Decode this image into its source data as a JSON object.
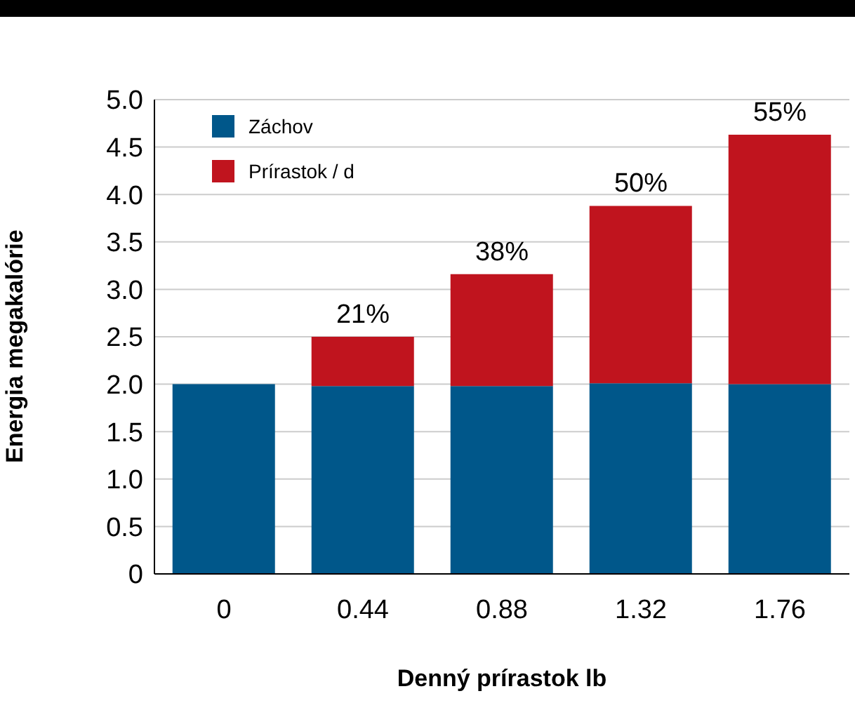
{
  "chart_data": {
    "type": "bar",
    "stacked": true,
    "xlabel": "Denný prírastok lb",
    "ylabel": "Energia megakalórie",
    "categories": [
      "0",
      "0.44",
      "0.88",
      "1.32",
      "1.76"
    ],
    "series": [
      {
        "name": "Záchov",
        "color": "#00578a",
        "values": [
          2.0,
          1.98,
          1.98,
          2.01,
          2.0
        ]
      },
      {
        "name": "Prírastok / d",
        "color": "#c0141e",
        "values": [
          null,
          0.52,
          1.18,
          1.87,
          2.63
        ]
      }
    ],
    "annotations": [
      {
        "text": "21%",
        "x": "0.44",
        "y": 2.5
      },
      {
        "text": "38%",
        "x": "0.88",
        "y": 3.16
      },
      {
        "text": "50%",
        "x": "1.32",
        "y": 3.88
      },
      {
        "text": "55%",
        "x": "1.76",
        "y": 4.63
      }
    ],
    "ylim": [
      0,
      5
    ],
    "yticks": [
      0,
      {
        "value": 0.5,
        "label": "0.5"
      },
      {
        "value": 1,
        "label": "1.0"
      },
      {
        "value": 1.5,
        "label": "1.5"
      },
      {
        "value": 2,
        "label": "2.0"
      },
      {
        "value": 2.5,
        "label": "2.5"
      },
      {
        "value": 3,
        "label": "3.0"
      },
      {
        "value": 3.5,
        "label": "3.5"
      },
      {
        "value": 4,
        "label": "4.0"
      },
      {
        "value": 4.5,
        "label": "4.5"
      },
      {
        "value": 5,
        "label": "5.0"
      }
    ],
    "grid": "y",
    "legend": "top left"
  }
}
